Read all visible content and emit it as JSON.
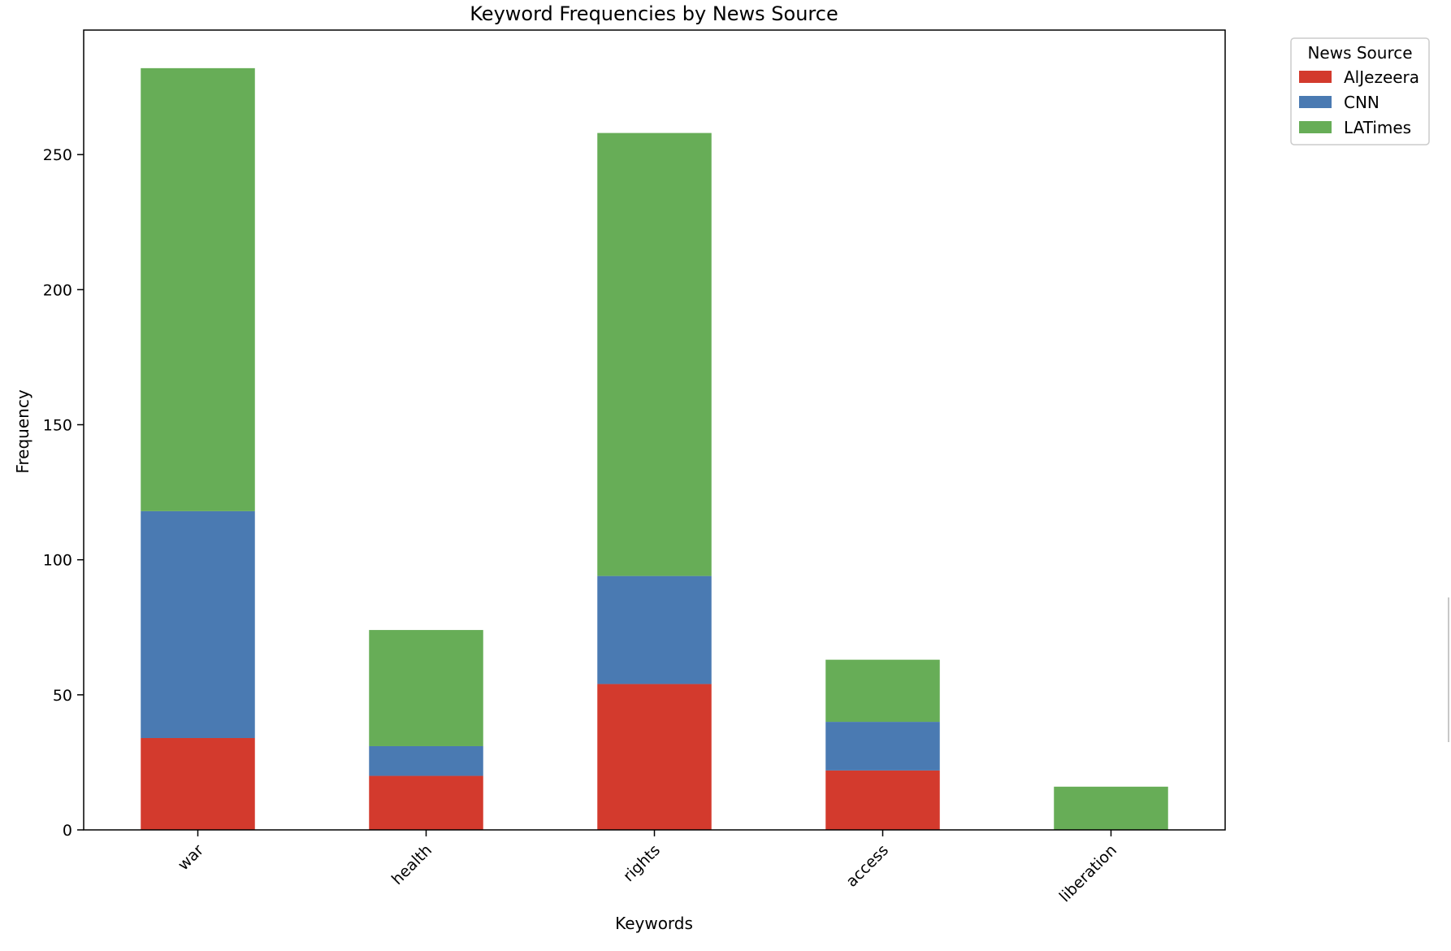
{
  "chart_data": {
    "type": "bar",
    "stacked": true,
    "title": "Keyword Frequencies by News Source",
    "xlabel": "Keywords",
    "ylabel": "Frequency",
    "categories": [
      "war",
      "health",
      "rights",
      "access",
      "liberation"
    ],
    "series": [
      {
        "name": "AlJezeera",
        "color": "#d33a2d",
        "values": [
          34,
          20,
          54,
          22,
          0
        ]
      },
      {
        "name": "CNN",
        "color": "#4a7ab2",
        "values": [
          84,
          11,
          40,
          18,
          0
        ]
      },
      {
        "name": "LATimes",
        "color": "#67ad57",
        "values": [
          164,
          43,
          164,
          23,
          16
        ]
      }
    ],
    "ylim": [
      0,
      296.1
    ],
    "yticks": [
      0,
      50,
      100,
      150,
      200,
      250
    ],
    "grid": false,
    "legend": {
      "title": "News Source",
      "placement": "outside-top-right"
    }
  }
}
